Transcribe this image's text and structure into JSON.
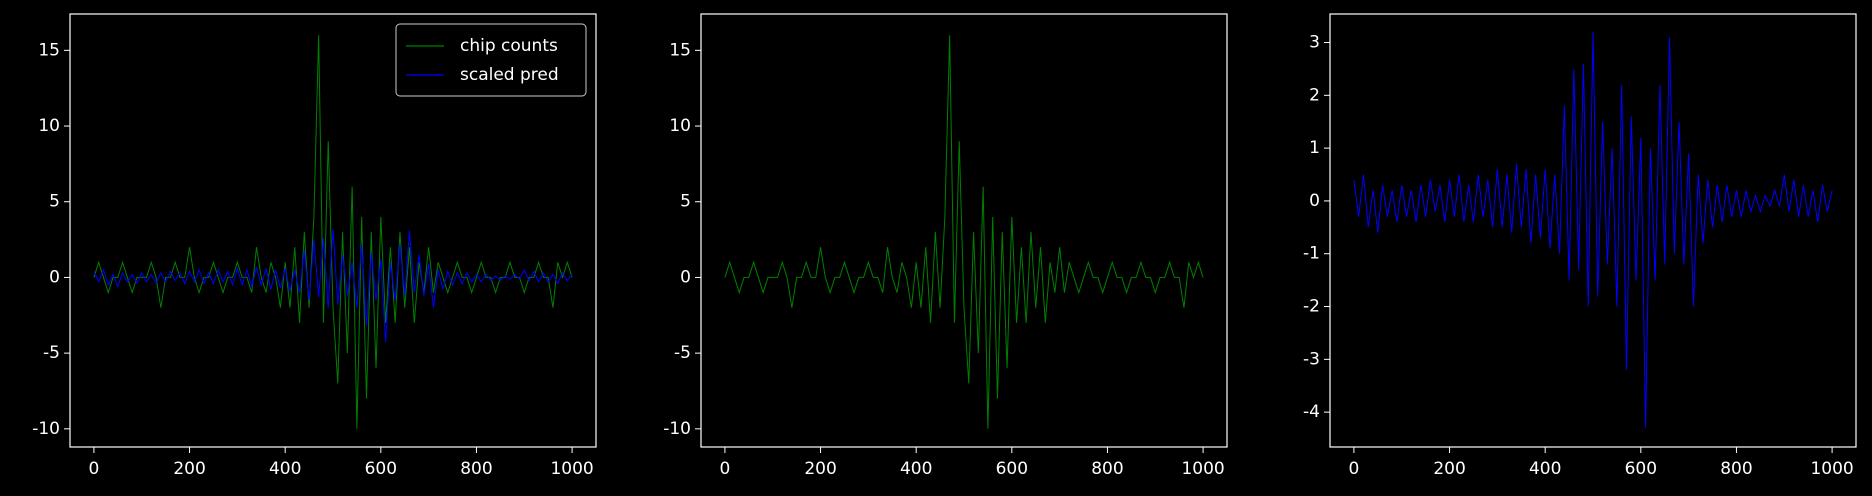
{
  "chart_data": [
    {
      "type": "line",
      "legend": "upper right",
      "xlim": [
        -50,
        1050
      ],
      "ylim": [
        -11.2,
        17.4
      ],
      "xticks": [
        0,
        200,
        400,
        600,
        800,
        1000
      ],
      "yticks": [
        -10,
        -5,
        0,
        5,
        10,
        15
      ],
      "x": [
        0,
        10,
        20,
        30,
        40,
        50,
        60,
        70,
        80,
        90,
        100,
        110,
        120,
        130,
        140,
        150,
        160,
        170,
        180,
        190,
        200,
        210,
        220,
        230,
        240,
        250,
        260,
        270,
        280,
        290,
        300,
        310,
        320,
        330,
        340,
        350,
        360,
        370,
        380,
        390,
        400,
        410,
        420,
        430,
        440,
        450,
        460,
        470,
        480,
        490,
        500,
        510,
        520,
        530,
        540,
        550,
        560,
        570,
        580,
        590,
        600,
        610,
        620,
        630,
        640,
        650,
        660,
        670,
        680,
        690,
        700,
        710,
        720,
        730,
        740,
        750,
        760,
        770,
        780,
        790,
        800,
        810,
        820,
        830,
        840,
        850,
        860,
        870,
        880,
        890,
        900,
        910,
        920,
        930,
        940,
        950,
        960,
        970,
        980,
        990,
        1000
      ],
      "series": [
        {
          "name": "chip counts",
          "color": "#008000",
          "values": [
            0,
            1,
            0,
            -1,
            0,
            0,
            1,
            0,
            -1,
            0,
            0,
            0,
            1,
            0,
            -2,
            0,
            0,
            1,
            0,
            0,
            2,
            0,
            -1,
            0,
            0,
            1,
            0,
            -1,
            0,
            0,
            1,
            0,
            0,
            -1,
            2,
            0,
            -1,
            1,
            0,
            -2,
            1,
            -2,
            2,
            -3,
            3,
            -2,
            4,
            16,
            -3,
            9,
            -2,
            -7,
            3,
            -5,
            6,
            -10,
            4,
            -8,
            3,
            -6,
            4,
            -3,
            2,
            -3,
            3,
            -2,
            2,
            -3,
            1,
            -1,
            2,
            -1,
            1,
            0,
            -1,
            0,
            1,
            0,
            0,
            -1,
            0,
            1,
            0,
            0,
            -1,
            0,
            0,
            1,
            0,
            0,
            -1,
            0,
            0,
            1,
            0,
            0,
            -2,
            1,
            0,
            1,
            0
          ]
        },
        {
          "name": "scaled pred",
          "color": "#0000ff",
          "values": [
            0.4,
            -0.3,
            0.5,
            -0.5,
            0.2,
            -0.6,
            0.3,
            -0.3,
            0.2,
            -0.4,
            0.3,
            -0.3,
            0.2,
            -0.4,
            0.3,
            -0.3,
            0.4,
            -0.2,
            0.3,
            -0.4,
            0.4,
            -0.3,
            0.5,
            -0.4,
            0.3,
            -0.4,
            0.5,
            -0.3,
            0.4,
            -0.5,
            0.6,
            -0.5,
            0.5,
            -0.6,
            0.7,
            -0.5,
            0.6,
            -0.8,
            0.5,
            -0.7,
            0.6,
            -0.9,
            0.5,
            -1.0,
            1.8,
            -1.5,
            2.5,
            -1.3,
            2.6,
            -2.0,
            3.2,
            -1.8,
            1.5,
            -1.2,
            1.0,
            -2.0,
            2.2,
            -3.2,
            1.6,
            -1.5,
            1.2,
            -4.3,
            1.0,
            -1.5,
            2.2,
            -1.2,
            3.1,
            -1.0,
            1.5,
            -1.2,
            0.9,
            -2.0,
            0.5,
            -0.8,
            0.4,
            -0.5,
            0.3,
            -0.4,
            0.3,
            -0.3,
            0.2,
            -0.3,
            0.2,
            -0.2,
            0.1,
            -0.2,
            0.1,
            -0.1,
            0.2,
            -0.1,
            0.5,
            -0.2,
            0.4,
            -0.3,
            0.3,
            -0.3,
            0.2,
            -0.4,
            0.3,
            -0.2,
            0.2
          ]
        }
      ]
    },
    {
      "type": "line",
      "xlim": [
        -50,
        1050
      ],
      "ylim": [
        -11.2,
        17.4
      ],
      "xticks": [
        0,
        200,
        400,
        600,
        800,
        1000
      ],
      "yticks": [
        -10,
        -5,
        0,
        5,
        10,
        15
      ],
      "x": [
        0,
        10,
        20,
        30,
        40,
        50,
        60,
        70,
        80,
        90,
        100,
        110,
        120,
        130,
        140,
        150,
        160,
        170,
        180,
        190,
        200,
        210,
        220,
        230,
        240,
        250,
        260,
        270,
        280,
        290,
        300,
        310,
        320,
        330,
        340,
        350,
        360,
        370,
        380,
        390,
        400,
        410,
        420,
        430,
        440,
        450,
        460,
        470,
        480,
        490,
        500,
        510,
        520,
        530,
        540,
        550,
        560,
        570,
        580,
        590,
        600,
        610,
        620,
        630,
        640,
        650,
        660,
        670,
        680,
        690,
        700,
        710,
        720,
        730,
        740,
        750,
        760,
        770,
        780,
        790,
        800,
        810,
        820,
        830,
        840,
        850,
        860,
        870,
        880,
        890,
        900,
        910,
        920,
        930,
        940,
        950,
        960,
        970,
        980,
        990,
        1000
      ],
      "series": [
        {
          "color": "#008000",
          "values": [
            0,
            1,
            0,
            -1,
            0,
            0,
            1,
            0,
            -1,
            0,
            0,
            0,
            1,
            0,
            -2,
            0,
            0,
            1,
            0,
            0,
            2,
            0,
            -1,
            0,
            0,
            1,
            0,
            -1,
            0,
            0,
            1,
            0,
            0,
            -1,
            2,
            0,
            -1,
            1,
            0,
            -2,
            1,
            -2,
            2,
            -3,
            3,
            -2,
            4,
            16,
            -3,
            9,
            -2,
            -7,
            3,
            -5,
            6,
            -10,
            4,
            -8,
            3,
            -6,
            4,
            -3,
            2,
            -3,
            3,
            -2,
            2,
            -3,
            1,
            -1,
            2,
            -1,
            1,
            0,
            -1,
            0,
            1,
            0,
            0,
            -1,
            0,
            1,
            0,
            0,
            -1,
            0,
            0,
            1,
            0,
            0,
            -1,
            0,
            0,
            1,
            0,
            0,
            -2,
            1,
            0,
            1,
            0
          ]
        }
      ]
    },
    {
      "type": "line",
      "xlim": [
        -50,
        1050
      ],
      "ylim": [
        -4.66,
        3.54
      ],
      "xticks": [
        0,
        200,
        400,
        600,
        800,
        1000
      ],
      "yticks": [
        -4,
        -3,
        -2,
        -1,
        0,
        1,
        2,
        3
      ],
      "x": [
        0,
        10,
        20,
        30,
        40,
        50,
        60,
        70,
        80,
        90,
        100,
        110,
        120,
        130,
        140,
        150,
        160,
        170,
        180,
        190,
        200,
        210,
        220,
        230,
        240,
        250,
        260,
        270,
        280,
        290,
        300,
        310,
        320,
        330,
        340,
        350,
        360,
        370,
        380,
        390,
        400,
        410,
        420,
        430,
        440,
        450,
        460,
        470,
        480,
        490,
        500,
        510,
        520,
        530,
        540,
        550,
        560,
        570,
        580,
        590,
        600,
        610,
        620,
        630,
        640,
        650,
        660,
        670,
        680,
        690,
        700,
        710,
        720,
        730,
        740,
        750,
        760,
        770,
        780,
        790,
        800,
        810,
        820,
        830,
        840,
        850,
        860,
        870,
        880,
        890,
        900,
        910,
        920,
        930,
        940,
        950,
        960,
        970,
        980,
        990,
        1000
      ],
      "series": [
        {
          "color": "#0000ff",
          "values": [
            0.4,
            -0.3,
            0.5,
            -0.5,
            0.2,
            -0.6,
            0.3,
            -0.3,
            0.2,
            -0.4,
            0.3,
            -0.3,
            0.2,
            -0.4,
            0.3,
            -0.3,
            0.4,
            -0.2,
            0.3,
            -0.4,
            0.4,
            -0.3,
            0.5,
            -0.4,
            0.3,
            -0.4,
            0.5,
            -0.3,
            0.4,
            -0.5,
            0.6,
            -0.5,
            0.5,
            -0.6,
            0.7,
            -0.5,
            0.6,
            -0.8,
            0.5,
            -0.7,
            0.6,
            -0.9,
            0.5,
            -1.0,
            1.8,
            -1.5,
            2.5,
            -1.3,
            2.6,
            -2.0,
            3.2,
            -1.8,
            1.5,
            -1.2,
            1.0,
            -2.0,
            2.2,
            -3.2,
            1.6,
            -1.5,
            1.2,
            -4.3,
            1.0,
            -1.5,
            2.2,
            -1.2,
            3.1,
            -1.0,
            1.5,
            -1.2,
            0.9,
            -2.0,
            0.5,
            -0.8,
            0.4,
            -0.5,
            0.3,
            -0.4,
            0.3,
            -0.3,
            0.2,
            -0.3,
            0.2,
            -0.2,
            0.1,
            -0.2,
            0.1,
            -0.1,
            0.2,
            -0.1,
            0.5,
            -0.2,
            0.4,
            -0.3,
            0.3,
            -0.3,
            0.2,
            -0.4,
            0.3,
            -0.2,
            0.2
          ]
        }
      ]
    }
  ]
}
